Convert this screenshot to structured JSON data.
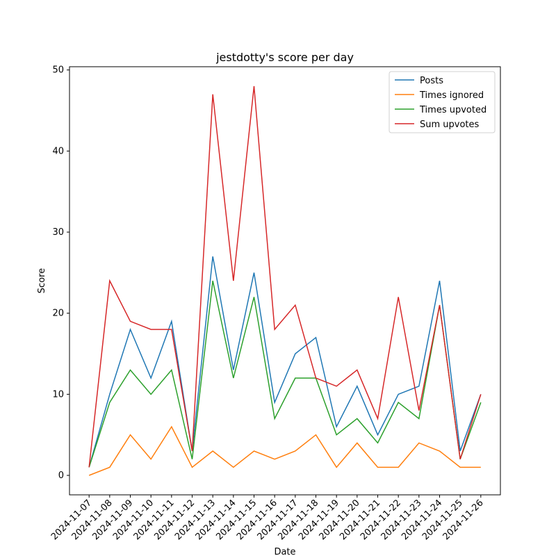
{
  "chart_data": {
    "type": "line",
    "title": "jestdotty's score per day",
    "xlabel": "Date",
    "ylabel": "Score",
    "categories": [
      "2024-11-07",
      "2024-11-08",
      "2024-11-09",
      "2024-11-10",
      "2024-11-11",
      "2024-11-12",
      "2024-11-13",
      "2024-11-14",
      "2024-11-15",
      "2024-11-16",
      "2024-11-17",
      "2024-11-18",
      "2024-11-19",
      "2024-11-20",
      "2024-11-21",
      "2024-11-22",
      "2024-11-23",
      "2024-11-24",
      "2024-11-25",
      "2024-11-26"
    ],
    "series": [
      {
        "name": "Posts",
        "color": "#1f77b4",
        "values": [
          1,
          10,
          18,
          12,
          19,
          3,
          27,
          13,
          25,
          9,
          15,
          17,
          6,
          11,
          5,
          10,
          11,
          24,
          3,
          10
        ]
      },
      {
        "name": "Times ignored",
        "color": "#ff7f0e",
        "values": [
          0,
          1,
          5,
          2,
          6,
          1,
          3,
          1,
          3,
          2,
          3,
          5,
          1,
          4,
          1,
          1,
          4,
          3,
          1,
          1
        ]
      },
      {
        "name": "Times upvoted",
        "color": "#2ca02c",
        "values": [
          1,
          9,
          13,
          10,
          13,
          2,
          24,
          12,
          22,
          7,
          12,
          12,
          5,
          7,
          4,
          9,
          7,
          21,
          2,
          9
        ]
      },
      {
        "name": "Sum upvotes",
        "color": "#d62728",
        "values": [
          1,
          24,
          19,
          18,
          18,
          3,
          47,
          24,
          48,
          18,
          21,
          12,
          11,
          13,
          7,
          22,
          8,
          21,
          2,
          10
        ]
      }
    ],
    "ylim": [
      -2.4,
      50.4
    ],
    "yticks": [
      0,
      10,
      20,
      30,
      40,
      50
    ],
    "legend": "upper right"
  }
}
